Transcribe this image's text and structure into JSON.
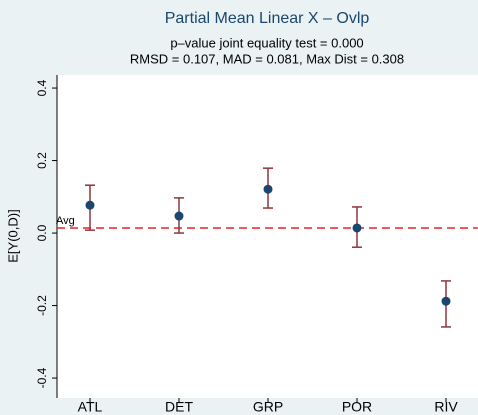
{
  "chart_data": {
    "type": "errorbar",
    "title": "Partial Mean Linear X – Ovlp",
    "subtitle": [
      "p–value joint equality test = 0.000",
      "RMSD = 0.107, MAD = 0.081, Max Dist = 0.308"
    ],
    "ylabel": "E[Y(0,D)]",
    "categories": [
      "ATL",
      "DET",
      "GRP",
      "POR",
      "RIV"
    ],
    "series": [
      {
        "color": "#1a476f",
        "error_color": "#90353b",
        "values": [
          0.077,
          0.047,
          0.121,
          0.014,
          -0.188
        ],
        "lower": [
          0.008,
          0.0,
          0.069,
          -0.039,
          -0.259
        ],
        "upper": [
          0.132,
          0.097,
          0.179,
          0.072,
          -0.132
        ]
      }
    ],
    "reference_line": {
      "label": "Avg",
      "value": 0.014,
      "color": "#e8212b"
    },
    "ylim": [
      -0.455,
      0.436
    ],
    "yticks": [
      -0.4,
      -0.2,
      {
        "value": 0,
        "label": "0.0"
      },
      0.2,
      0.4
    ]
  }
}
